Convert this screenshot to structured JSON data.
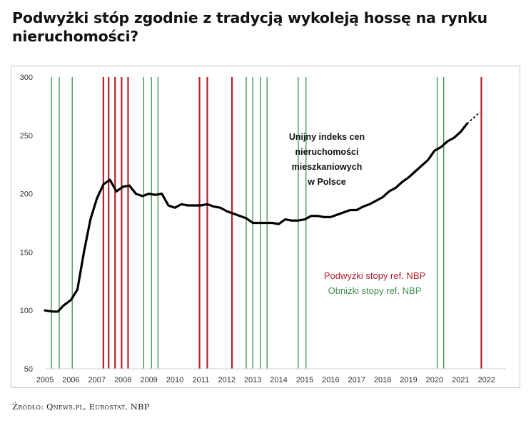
{
  "title": "Podwyżki stóp zgodnie z tradycją wykoleją hossę na rynku nieruchomości?",
  "source": "Źródło: Qnews.pl, Eurostat, NBP",
  "colors": {
    "hike": "#b5202b",
    "cut": "#3f8f4e",
    "line": "#000000"
  },
  "chart_data": {
    "type": "line",
    "xlim": [
      2005,
      2022.75
    ],
    "ylim": [
      50,
      300
    ],
    "x_ticks": [
      "2005",
      "2006",
      "2007",
      "2008",
      "2009",
      "2010",
      "2011",
      "2012",
      "2013",
      "2014",
      "2015",
      "2016",
      "2017",
      "2018",
      "2019",
      "2020",
      "2021",
      "2022"
    ],
    "y_ticks": [
      "300",
      "250",
      "200",
      "150",
      "100",
      "50"
    ],
    "annotation": [
      "Unijny indeks cen",
      "nieruchomości",
      "mieszkaniowych",
      "w Polsce"
    ],
    "legend": [
      {
        "label": "Podwyżki stopy ref. NBP",
        "color": "#b5202b"
      },
      {
        "label": "Obniżki stopy ref. NBP",
        "color": "#3f8f4e"
      }
    ],
    "rate_hikes": [
      2007.25,
      2007.45,
      2007.7,
      2007.95,
      2008.2,
      2010.95,
      2011.25,
      2012.2,
      2021.8
    ],
    "rate_cuts": [
      2005.25,
      2005.55,
      2006.05,
      2008.8,
      2009.1,
      2009.35,
      2012.75,
      2013.0,
      2013.3,
      2013.55,
      2014.75,
      2015.05,
      2020.1,
      2020.35
    ],
    "series": [
      {
        "x": [
          2005.0,
          2005.3,
          2005.5,
          2005.7,
          2006.0,
          2006.25,
          2006.5,
          2006.75,
          2007.0,
          2007.25,
          2007.5,
          2007.75,
          2008.0,
          2008.25,
          2008.5,
          2008.75,
          2009.0,
          2009.25,
          2009.5,
          2009.75,
          2010.0,
          2010.25,
          2010.5,
          2010.75,
          2011.0,
          2011.25,
          2011.5,
          2011.75,
          2012.0,
          2012.25,
          2012.5,
          2012.75,
          2013.0,
          2013.25,
          2013.5,
          2013.75,
          2014.0,
          2014.25,
          2014.5,
          2014.75,
          2015.0,
          2015.25,
          2015.5,
          2015.75,
          2016.0,
          2016.25,
          2016.5,
          2016.75,
          2017.0,
          2017.25,
          2017.5,
          2017.75,
          2018.0,
          2018.25,
          2018.5,
          2018.75,
          2019.0,
          2019.25,
          2019.5,
          2019.75,
          2020.0,
          2020.25,
          2020.5,
          2020.75,
          2021.0,
          2021.25
        ],
        "y": [
          100,
          99,
          99,
          104,
          109,
          118,
          150,
          178,
          196,
          208,
          212,
          202,
          206,
          207,
          200,
          198,
          200,
          199,
          200,
          190,
          188,
          191,
          190,
          190,
          190,
          191,
          189,
          188,
          185,
          183,
          181,
          179,
          175,
          175,
          175,
          175,
          174,
          178,
          177,
          177,
          178,
          181,
          181,
          180,
          180,
          182,
          184,
          186,
          186,
          189,
          191,
          194,
          197,
          202,
          205,
          210,
          214,
          219,
          224,
          229,
          237,
          240,
          245,
          248,
          253,
          260
        ]
      },
      {
        "x": [
          2021.25,
          2021.75
        ],
        "y": [
          260,
          270
        ]
      }
    ]
  }
}
